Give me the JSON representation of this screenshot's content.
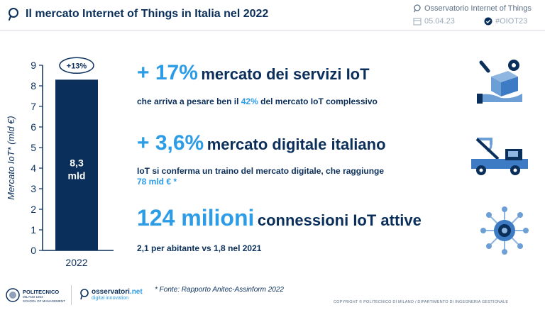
{
  "header": {
    "title": "Il mercato Internet of Things in Italia nel 2022",
    "observatory": "Osservatorio Internet of Things",
    "date": "05.04.23",
    "hashtag": "#OIOT23"
  },
  "chart_data": {
    "type": "bar",
    "categories": [
      "2022"
    ],
    "values": [
      8.3
    ],
    "ylabel": "Mercato IoT* (mld €)",
    "ylim": [
      0,
      9
    ],
    "yticks": [
      "0",
      "1",
      "2",
      "3",
      "4",
      "5",
      "6",
      "7",
      "8",
      "9"
    ],
    "bar_label_line1": "8,3",
    "bar_label_line2": "mld",
    "growth_badge": "+13%",
    "bar_color": "#0b2f5b",
    "grid": false
  },
  "stats": [
    {
      "big": "+ 17%",
      "suffix": "mercato dei servizi IoT",
      "detail_before": "che arriva a pesare ben il ",
      "detail_highlight": "42%",
      "detail_after": " del mercato IoT complessivo",
      "icon": "gear-box-hand-icon"
    },
    {
      "big": "+ 3,6%",
      "suffix": "mercato digitale italiano",
      "detail_line1": "IoT si conferma un traino del mercato digitale, che raggiunge",
      "detail_line2": "78 mld € *",
      "icon": "tow-truck-icon"
    },
    {
      "big": "124 milioni",
      "suffix": "connessioni IoT attive",
      "detail": "2,1 per abitante vs 1,8 nel 2021",
      "icon": "network-node-icon"
    }
  ],
  "footer": {
    "polimi_name": "POLITECNICO",
    "polimi_sub": "MILANO 1863",
    "polimi_school": "SCHOOL OF MANAGEMENT",
    "osserv_name": "osservatori",
    "osserv_net": ".net",
    "osserv_tag": "digital innovation",
    "source_note": "* Fonte: Rapporto Anitec-Assinform 2022",
    "copyright": "COPYRIGHT © POLITECNICO DI MILANO / DIPARTIMENTO DI INGEGNERIA GESTIONALE"
  },
  "colors": {
    "navy": "#0b2f5b",
    "accent": "#2d9ce6",
    "icon_light": "#6c9fd6"
  }
}
